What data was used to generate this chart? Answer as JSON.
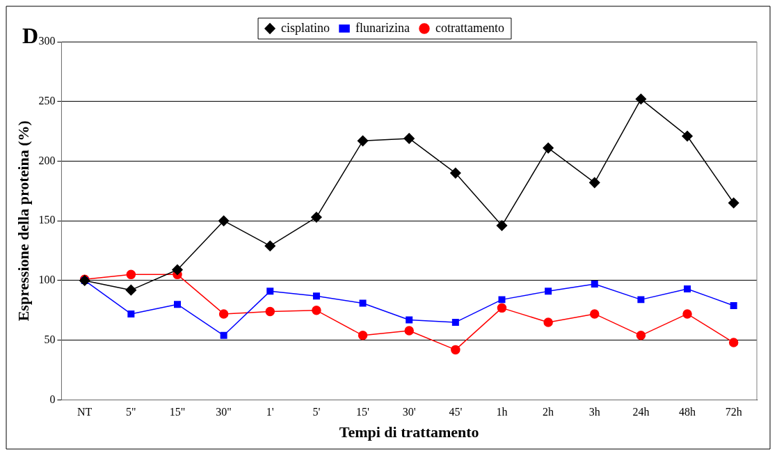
{
  "chart_data": {
    "type": "line",
    "xlabel": "Tempi di trattamento",
    "ylabel": "Espressione della proteina (%)",
    "annotations": [
      "D"
    ],
    "categories": [
      "NT",
      "5\"",
      "15\"",
      "30\"",
      "1'",
      "5'",
      "15'",
      "30'",
      "45'",
      "1h",
      "2h",
      "3h",
      "24h",
      "48h",
      "72h"
    ],
    "series": [
      {
        "name": "cisplatino",
        "color": "#000000",
        "marker": "diamond",
        "values": [
          100,
          92,
          109,
          150,
          129,
          153,
          217,
          219,
          190,
          146,
          211,
          182,
          252,
          221,
          165
        ]
      },
      {
        "name": "flunarizina",
        "color": "#0000ff",
        "marker": "square",
        "values": [
          100,
          72,
          80,
          54,
          91,
          87,
          81,
          67,
          65,
          84,
          91,
          97,
          84,
          93,
          79
        ]
      },
      {
        "name": "cotrattamento",
        "color": "#ff0000",
        "marker": "circle",
        "values": [
          101,
          105,
          105,
          72,
          74,
          75,
          54,
          58,
          42,
          77,
          65,
          72,
          54,
          72,
          48
        ]
      }
    ],
    "ylim": [
      0,
      300
    ],
    "yticks": [
      0,
      50,
      100,
      150,
      200,
      250,
      300
    ],
    "grid": "y",
    "legend": "top",
    "line_style": "solid"
  }
}
